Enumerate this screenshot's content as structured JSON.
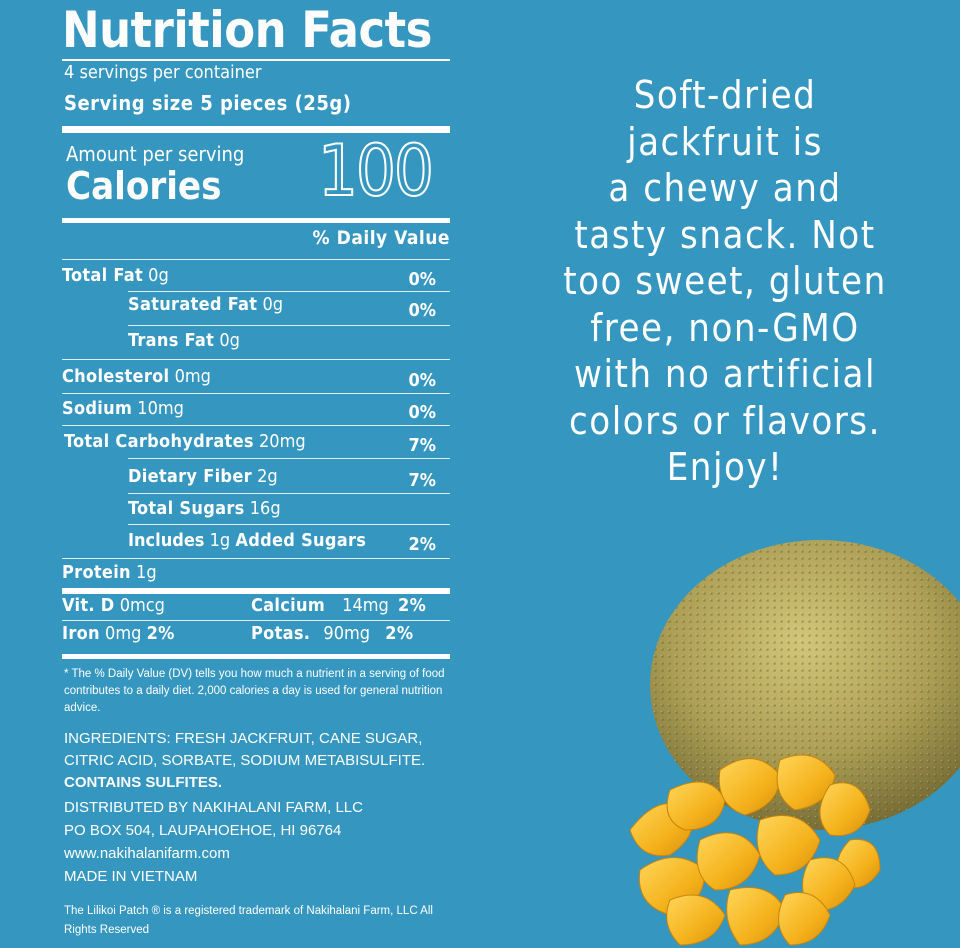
{
  "label": {
    "title": "Nutrition Facts",
    "servings_per_container": "4 servings per container",
    "serving_size": "Serving size 5 pieces (25g)",
    "amount_per_serving": "Amount per serving",
    "calories_label": "Calories",
    "calories_value": "100",
    "daily_value_header": "% Daily Value",
    "rows": [
      {
        "name": "Total Fat",
        "amount": "0g",
        "dv": "0%"
      },
      {
        "name": "Saturated Fat",
        "amount": "0g",
        "dv": "0%"
      },
      {
        "name": "Trans Fat",
        "amount": "0g",
        "dv": ""
      },
      {
        "name": "Cholesterol",
        "amount": "0mg",
        "dv": "0%"
      },
      {
        "name": "Sodium",
        "amount": "10mg",
        "dv": "0%"
      },
      {
        "name": "Total Carbohydrates",
        "amount": "20mg",
        "dv": "7%"
      },
      {
        "name": "Dietary Fiber",
        "amount": "2g",
        "dv": "7%"
      },
      {
        "name": "Total Sugars",
        "amount": "16g",
        "dv": ""
      },
      {
        "name_prefix": "Includes",
        "amount": "1g",
        "name": "Added Sugars",
        "dv": "2%"
      },
      {
        "name": "Protein",
        "amount": "1g",
        "dv": ""
      }
    ],
    "micros": {
      "vitd_name": "Vit. D",
      "vitd_amount": "0mcg",
      "calcium_name": "Calcium",
      "calcium_amount": "14mg",
      "calcium_dv": "2%",
      "iron_name": "Iron",
      "iron_amount": "0mg",
      "iron_dv": "2%",
      "potas_name": "Potas.",
      "potas_amount": "90mg",
      "potas_dv": "2%"
    },
    "footnote": "* The % Daily Value (DV) tells you how much a nutrient in a serving of food contributes to a daily diet. 2,000 calories a day is used for general nutrition advice.",
    "ingredients": "INGREDIENTS: FRESH JACKFRUIT, CANE SUGAR, CITRIC ACID, SORBATE, SODIUM METABISULFITE.",
    "contains": "CONTAINS SULFITES.",
    "distributor_lines": [
      "DISTRIBUTED BY NAKIHALANI FARM, LLC",
      "PO BOX 504, LAUPAHOEHOE, HI 96764",
      "www.nakihalanifarm.com",
      "MADE IN VIETNAM"
    ],
    "trademark": "The Lilikoi Patch ® is a registered trademark of Nakihalani Farm, LLC All Rights Reserved"
  },
  "tagline_lines": [
    "Soft-dried",
    "jackfruit is",
    "a chewy and",
    "tasty snack. Not",
    "too sweet, gluten",
    "free, non-GMO",
    "with no artificial",
    "colors or flavors.",
    "Enjoy!"
  ],
  "colors": {
    "background": "#3596c0",
    "text": "#ffffff",
    "jackfruit_skin": "#b1a55a",
    "jackfruit_chips": "#f3b81f"
  },
  "illustration": {
    "icon": "jackfruit-illustration",
    "parts": [
      "jackfruit-whole",
      "jackfruit-chips"
    ]
  }
}
